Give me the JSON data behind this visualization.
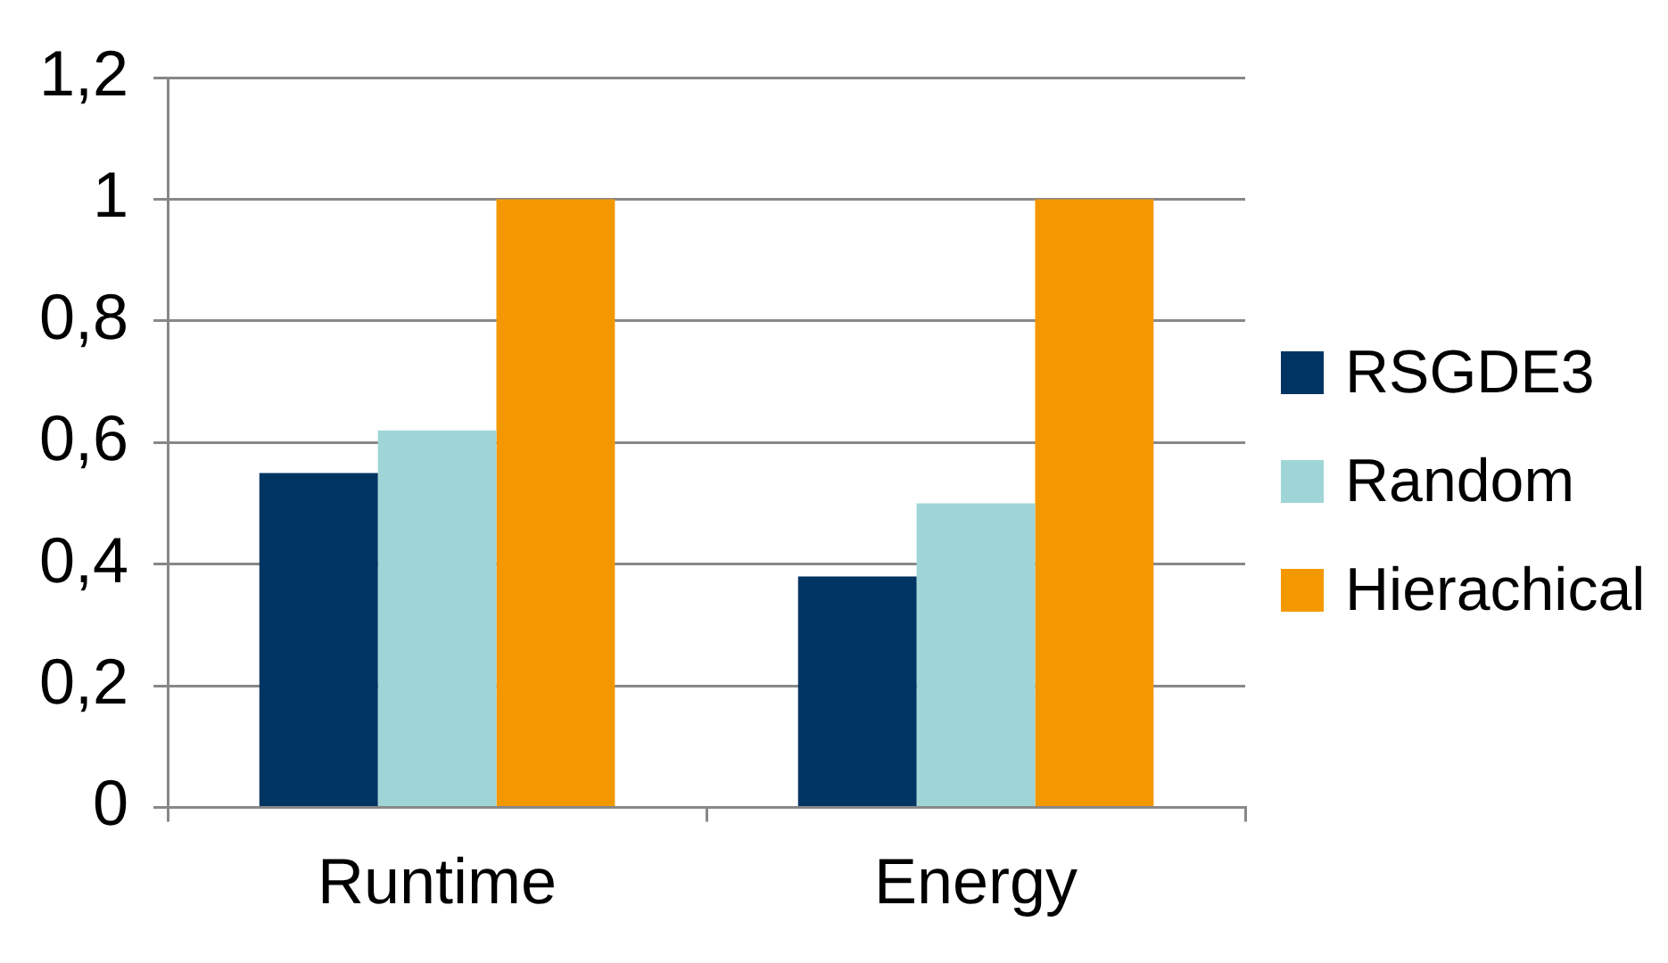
{
  "chart_data": {
    "type": "bar",
    "categories": [
      "Runtime",
      "Energy"
    ],
    "series": [
      {
        "name": "RSGDE3",
        "color": "#003462",
        "values": [
          0.55,
          0.38
        ]
      },
      {
        "name": "Random",
        "color": "#9fd5d6",
        "values": [
          0.62,
          0.5
        ]
      },
      {
        "name": "Hierachical",
        "color": "#f39800",
        "values": [
          1,
          1
        ]
      }
    ],
    "ylim": [
      0,
      1.2
    ],
    "yticks": [
      {
        "value": 0,
        "label": "0"
      },
      {
        "value": 0.2,
        "label": "0,2"
      },
      {
        "value": 0.4,
        "label": "0,4"
      },
      {
        "value": 0.6,
        "label": "0,6"
      },
      {
        "value": 0.8,
        "label": "0,8"
      },
      {
        "value": 1,
        "label": "1"
      },
      {
        "value": 1.2,
        "label": "1,2"
      }
    ],
    "grid": "y",
    "legend": "right"
  }
}
